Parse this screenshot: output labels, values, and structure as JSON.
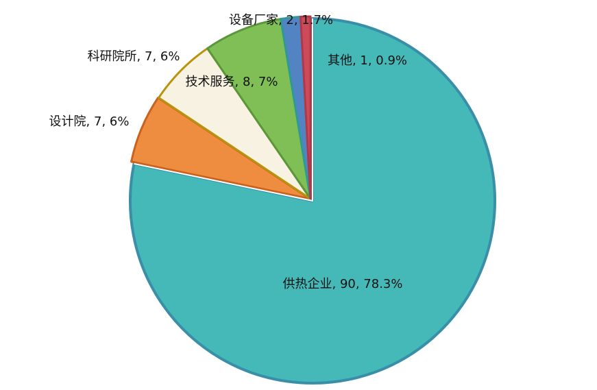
{
  "chart_data": {
    "type": "pie",
    "start_angle": "12 o'clock",
    "direction": "clockwise",
    "slices": [
      {
        "name": "供热企业",
        "value": 90,
        "percent": "78.3%",
        "label": "供热企业, 90, 78.3%",
        "color": "#45B8B8",
        "stroke": "#3A8FA8"
      },
      {
        "name": "设计院",
        "value": 7,
        "percent": "6%",
        "label": "设计院, 7, 6%",
        "color": "#EE8C3F",
        "stroke": "#C8621E"
      },
      {
        "name": "科研院所",
        "value": 7,
        "percent": "6%",
        "label": "科研院所, 7, 6%",
        "color": "#F7F2E2",
        "stroke": "#B8940E"
      },
      {
        "name": "技术服务",
        "value": 8,
        "percent": "7%",
        "label": "技术服务, 8, 7%",
        "color": "#80BF55",
        "stroke": "#5C963A"
      },
      {
        "name": "设备厂家",
        "value": 2,
        "percent": "1.7%",
        "label": "设备厂家, 2, 1.7%",
        "color": "#5284C4",
        "stroke": "#2E9A96"
      },
      {
        "name": "其他",
        "value": 1,
        "percent": "0.9%",
        "label": "其他, 1, 0.9%",
        "color": "#CC4A5A",
        "stroke": "#B03848"
      }
    ]
  }
}
